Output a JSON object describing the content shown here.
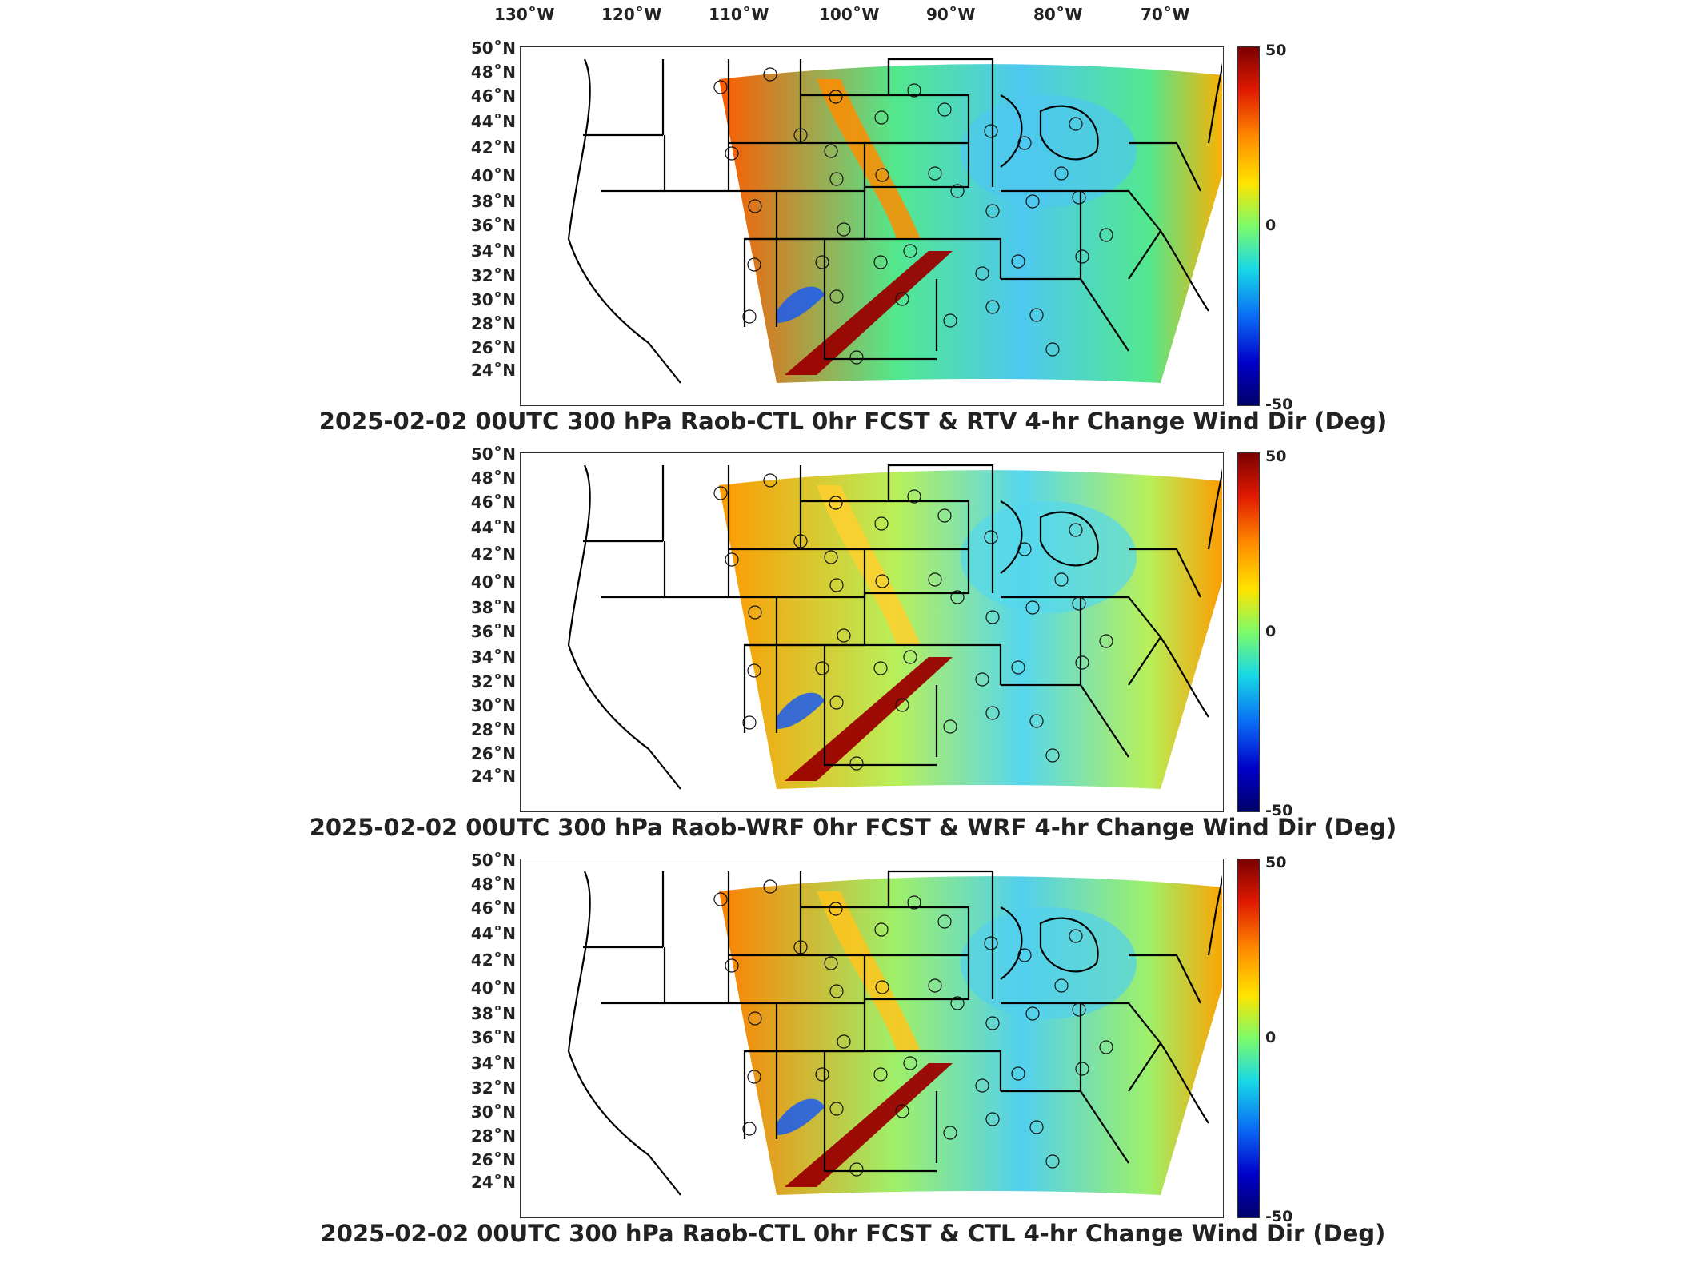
{
  "longitude_labels": [
    {
      "deg": "130",
      "hem": "W"
    },
    {
      "deg": "120",
      "hem": "W"
    },
    {
      "deg": "110",
      "hem": "W"
    },
    {
      "deg": "100",
      "hem": "W"
    },
    {
      "deg": "90",
      "hem": "W"
    },
    {
      "deg": "80",
      "hem": "W"
    },
    {
      "deg": "70",
      "hem": "W"
    }
  ],
  "latitude_labels": [
    {
      "deg": "50",
      "hem": "N"
    },
    {
      "deg": "48",
      "hem": "N"
    },
    {
      "deg": "46",
      "hem": "N"
    },
    {
      "deg": "44",
      "hem": "N"
    },
    {
      "deg": "42",
      "hem": "N"
    },
    {
      "deg": "40",
      "hem": "N"
    },
    {
      "deg": "38",
      "hem": "N"
    },
    {
      "deg": "36",
      "hem": "N"
    },
    {
      "deg": "34",
      "hem": "N"
    },
    {
      "deg": "32",
      "hem": "N"
    },
    {
      "deg": "30",
      "hem": "N"
    },
    {
      "deg": "28",
      "hem": "N"
    },
    {
      "deg": "26",
      "hem": "N"
    },
    {
      "deg": "24",
      "hem": "N"
    }
  ],
  "colorbar": {
    "ticks": [
      "50",
      "0",
      "-50"
    ],
    "colors": [
      "#7a0000",
      "#e01a00",
      "#ff8a00",
      "#ffe400",
      "#7dfb6a",
      "#18d8e6",
      "#0a6ef5",
      "#0000c8",
      "#00006a"
    ]
  },
  "panels": [
    {
      "title": "2025-02-02 00UTC 300 hPa Raob-CTL 0hr FCST & RTV 4-hr Change Wind Dir (Deg)"
    },
    {
      "title": "2025-02-02 00UTC 300 hPa Raob-WRF 0hr FCST & WRF 4-hr Change Wind Dir (Deg)"
    },
    {
      "title": "2025-02-02 00UTC 300 hPa Raob-CTL 0hr FCST & CTL 4-hr Change Wind Dir (Deg)"
    }
  ]
}
